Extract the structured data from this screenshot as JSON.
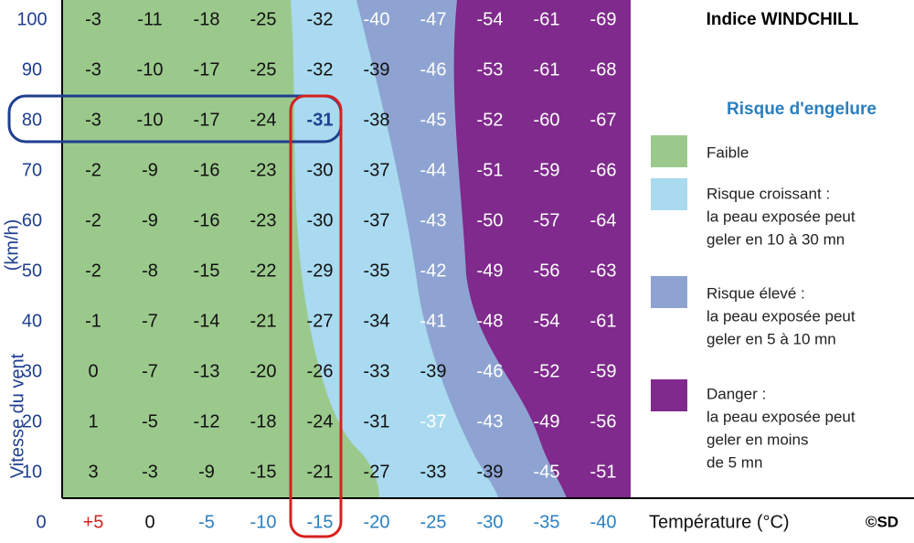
{
  "title": "Indice WINDCHILL",
  "legend": {
    "title": "Risque d'engelure",
    "items": [
      {
        "lines": [
          "Faible"
        ]
      },
      {
        "lines": [
          "Risque croissant :",
          "la peau exposée peut",
          "geler en 10 à 30 mn"
        ]
      },
      {
        "lines": [
          "Risque élevé :",
          "la peau exposée peut",
          "geler en 5 à 10 mn"
        ]
      },
      {
        "lines": [
          "Danger :",
          "la peau exposée peut",
          "geler en moins",
          "de 5 mn"
        ]
      }
    ]
  },
  "y_axis": {
    "label": "Vitesse du vent",
    "unit": "(km/h)",
    "origin": "0",
    "speeds": [
      100,
      90,
      80,
      70,
      60,
      50,
      40,
      30,
      20,
      10
    ]
  },
  "x_axis": {
    "label": "Température (°C)",
    "temperatures": [
      "+5",
      "0",
      "-5",
      "-10",
      "-15",
      "-20",
      "-25",
      "-30",
      "-35",
      "-40"
    ]
  },
  "credit": "©SD",
  "table": {
    "rows": [
      [
        -3,
        -11,
        -18,
        -25,
        -32,
        -40,
        -47,
        -54,
        -61,
        -69
      ],
      [
        -3,
        -10,
        -17,
        -25,
        -32,
        -39,
        -46,
        -53,
        -61,
        -68
      ],
      [
        -3,
        -10,
        -17,
        -24,
        -31,
        -38,
        -45,
        -52,
        -60,
        -67
      ],
      [
        -2,
        -9,
        -16,
        -23,
        -30,
        -37,
        -44,
        -51,
        -59,
        -66
      ],
      [
        -2,
        -9,
        -16,
        -23,
        -30,
        -37,
        -43,
        -50,
        -57,
        -64
      ],
      [
        -2,
        -8,
        -15,
        -22,
        -29,
        -35,
        -42,
        -49,
        -56,
        -63
      ],
      [
        -1,
        -7,
        -14,
        -21,
        -27,
        -34,
        -41,
        -48,
        -54,
        -61
      ],
      [
        0,
        -7,
        -13,
        -20,
        -26,
        -33,
        -39,
        -46,
        -52,
        -59
      ],
      [
        1,
        -5,
        -12,
        -18,
        -24,
        -31,
        -37,
        -43,
        -49,
        -56
      ],
      [
        3,
        -3,
        -9,
        -15,
        -21,
        -27,
        -33,
        -39,
        -45,
        -51
      ]
    ]
  }
}
